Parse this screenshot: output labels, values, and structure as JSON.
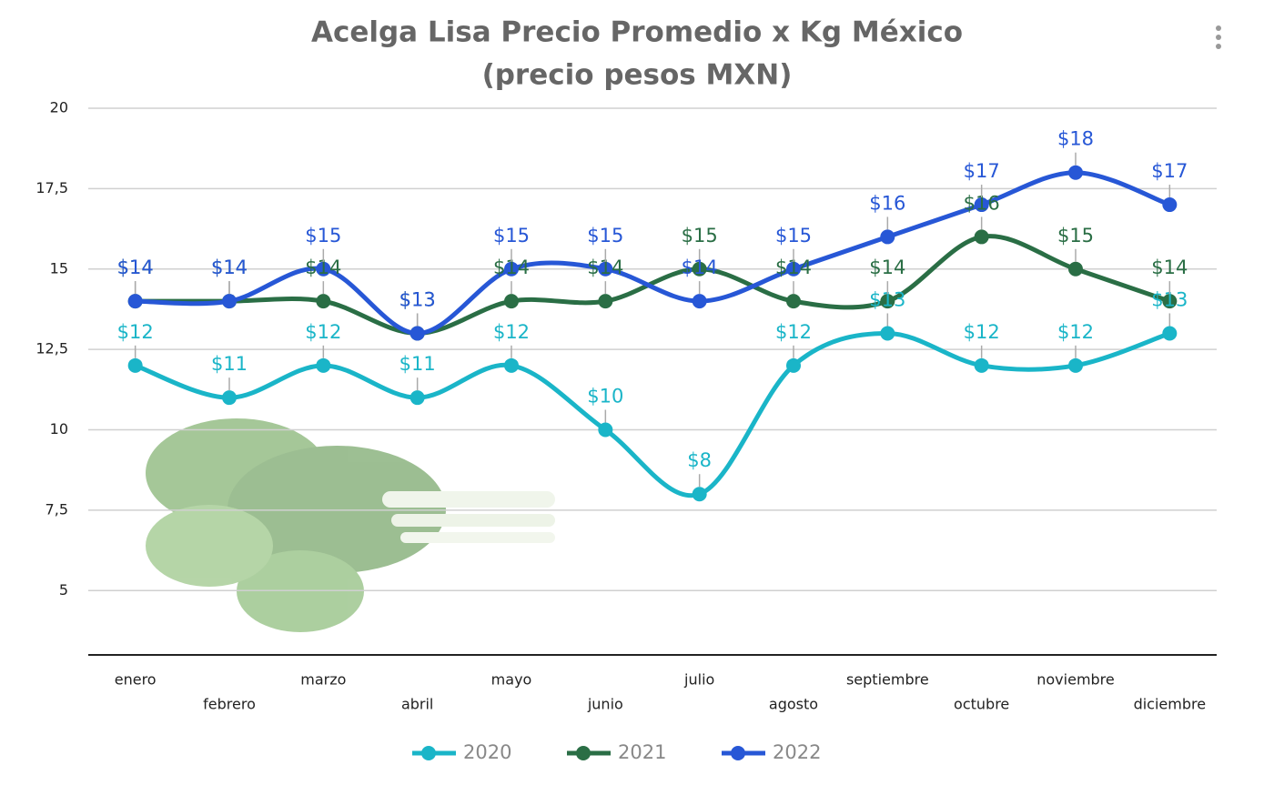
{
  "chart_data": {
    "type": "line",
    "title": "Acelga Lisa Precio Promedio x Kg México",
    "subtitle": "(precio pesos MXN)",
    "categories": [
      "enero",
      "febrero",
      "marzo",
      "abril",
      "mayo",
      "junio",
      "julio",
      "agosto",
      "septiembre",
      "octubre",
      "noviembre",
      "diciembre"
    ],
    "series": [
      {
        "name": "2020",
        "color": "#1ab5c8",
        "values": [
          12,
          11,
          12,
          11,
          12,
          10,
          8,
          12,
          13,
          12,
          12,
          13
        ],
        "value_labels": [
          "$12",
          "$11",
          "$12",
          "$11",
          "$12",
          "$10",
          "$8",
          "$12",
          "$13",
          "$12",
          "$12",
          "$13"
        ]
      },
      {
        "name": "2021",
        "color": "#2a6e45",
        "values": [
          14,
          14,
          14,
          13,
          14,
          14,
          15,
          14,
          14,
          16,
          15,
          14
        ],
        "value_labels": [
          "$14",
          "$14",
          "$14",
          "$13",
          "$14",
          "$14",
          "$15",
          "$14",
          "$14",
          "$16",
          "$15",
          "$14"
        ]
      },
      {
        "name": "2022",
        "color": "#2757d6",
        "values": [
          14,
          14,
          15,
          13,
          15,
          15,
          14,
          15,
          16,
          17,
          18,
          17
        ],
        "value_labels": [
          "$14",
          "$14",
          "$15",
          "$13",
          "$15",
          "$15",
          "$14",
          "$15",
          "$16",
          "$17",
          "$18",
          "$17"
        ]
      }
    ],
    "ylim": [
      3,
      20
    ],
    "yticks": [
      {
        "value": 5,
        "label": "5"
      },
      {
        "value": 7.5,
        "label": "7,5"
      },
      {
        "value": 10,
        "label": "10"
      },
      {
        "value": 12.5,
        "label": "12,5"
      },
      {
        "value": 15,
        "label": "15"
      },
      {
        "value": 17.5,
        "label": "17,5"
      },
      {
        "value": 20,
        "label": "20"
      }
    ],
    "grid": true,
    "smooth": true,
    "legend": "bottom"
  }
}
